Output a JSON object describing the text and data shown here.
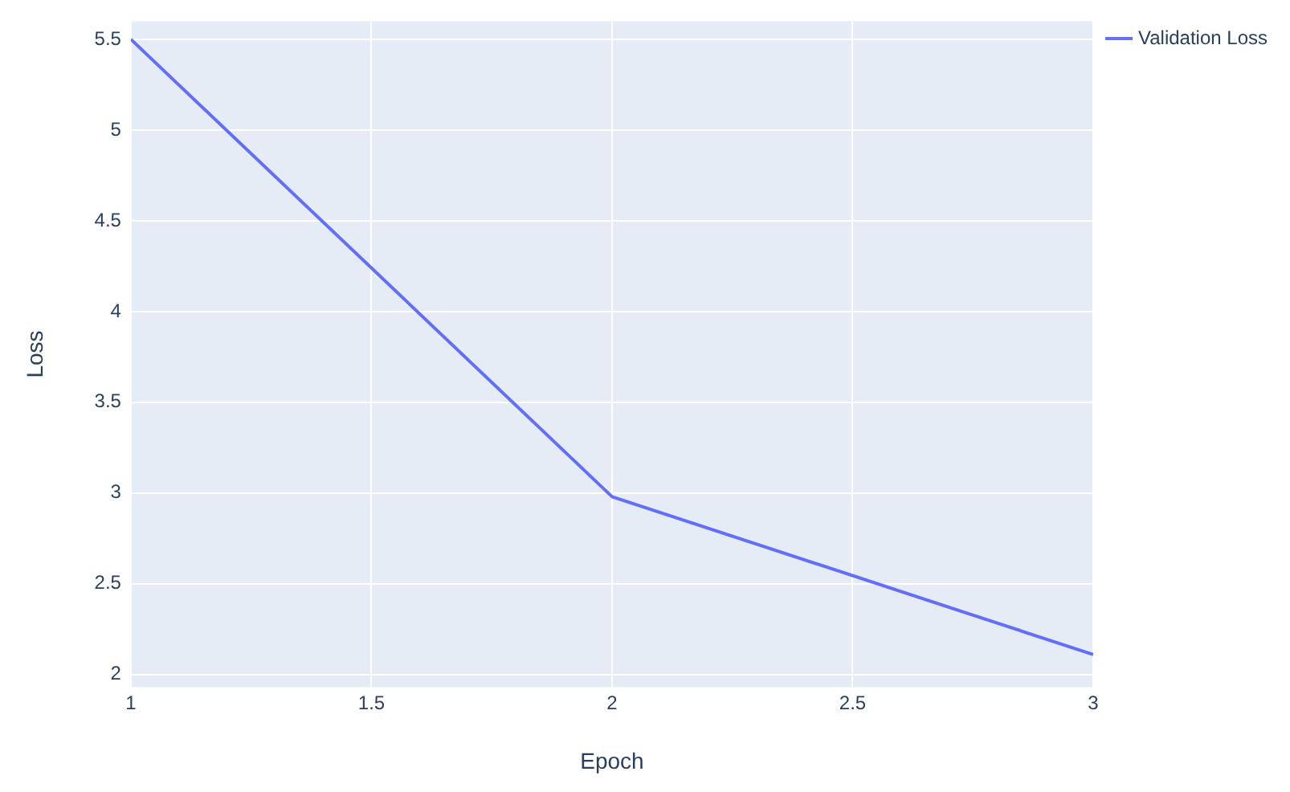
{
  "chart_data": {
    "type": "line",
    "xlabel": "Epoch",
    "ylabel": "Loss",
    "x": [
      1,
      2,
      3
    ],
    "series": [
      {
        "name": "Validation Loss",
        "color": "#636efa",
        "values": [
          5.5,
          2.98,
          2.11
        ]
      }
    ],
    "xlim": [
      1,
      3
    ],
    "xticks": [
      1,
      1.5,
      2,
      2.5,
      3
    ],
    "ylim": [
      1.93,
      5.6
    ],
    "yticks": [
      2,
      2.5,
      3,
      3.5,
      4,
      4.5,
      5,
      5.5
    ],
    "grid": true,
    "legend": "top right",
    "marker": "none",
    "line_style": "solid"
  }
}
